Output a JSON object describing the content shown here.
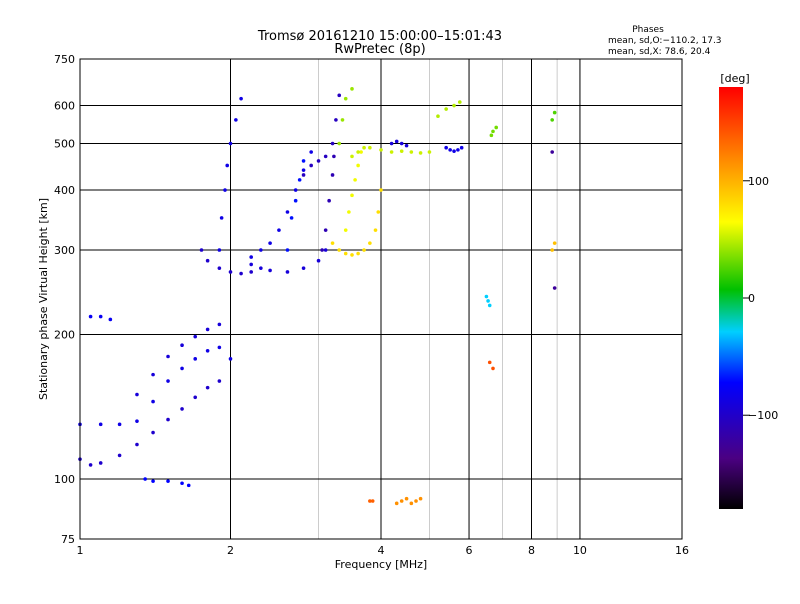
{
  "chart_data": {
    "type": "scatter",
    "title": "Tromsø 20161210 15:00:00–15:01:43",
    "subtitle": "RwPretec (8p)",
    "xlabel": "Frequency [MHz]",
    "ylabel": "Stationary phase Virtual Height [km]",
    "x_scale": "log",
    "y_scale": "log",
    "xlim": [
      1,
      16
    ],
    "ylim": [
      75,
      750
    ],
    "x_ticks": [
      1,
      2,
      4,
      6,
      8,
      10,
      16
    ],
    "x_tick_labels": [
      "1",
      "2",
      "4",
      "6",
      "8",
      "10",
      "16"
    ],
    "x_grid": [
      2,
      4,
      6,
      8,
      10
    ],
    "x_minor_grid": [
      3,
      5,
      7,
      9
    ],
    "y_ticks": [
      75,
      100,
      200,
      300,
      400,
      500,
      600,
      750
    ],
    "y_tick_labels": [
      "75",
      "100",
      "200",
      "300",
      "400",
      "500",
      "600",
      "750"
    ],
    "y_grid": [
      100,
      200,
      300,
      400,
      500,
      600
    ],
    "grid": true,
    "stats": {
      "heading": "Phases",
      "line1": "mean, sd,O:−110.2, 17.3",
      "line2": "mean, sd,X:  78.6, 20.4"
    },
    "colorbar": {
      "label": "[deg]",
      "ticks": [
        100,
        0,
        -100
      ],
      "tick_labels": [
        "100",
        "0",
        "−100"
      ],
      "range": [
        -180,
        180
      ],
      "placement": "right"
    },
    "series": [
      {
        "phase": -120,
        "trace": [
          [
            1.0,
            110
          ],
          [
            1.05,
            107
          ],
          [
            1.1,
            108
          ],
          [
            1.2,
            112
          ],
          [
            1.3,
            118
          ],
          [
            1.4,
            125
          ],
          [
            1.5,
            133
          ],
          [
            1.6,
            140
          ],
          [
            1.7,
            148
          ],
          [
            1.8,
            155
          ],
          [
            1.9,
            160
          ]
        ]
      },
      {
        "phase": -110,
        "trace": [
          [
            1.0,
            130
          ],
          [
            1.1,
            130
          ],
          [
            1.2,
            130
          ],
          [
            1.3,
            132
          ],
          [
            1.4,
            145
          ],
          [
            1.5,
            160
          ],
          [
            1.6,
            170
          ],
          [
            1.7,
            178
          ],
          [
            1.8,
            185
          ],
          [
            1.9,
            188
          ],
          [
            2.0,
            178
          ]
        ]
      },
      {
        "phase": -115,
        "trace": [
          [
            1.3,
            150
          ],
          [
            1.4,
            165
          ],
          [
            1.5,
            180
          ],
          [
            1.6,
            190
          ],
          [
            1.7,
            198
          ],
          [
            1.8,
            205
          ],
          [
            1.9,
            210
          ]
        ]
      },
      {
        "phase": -105,
        "trace": [
          [
            1.05,
            218
          ],
          [
            1.1,
            218
          ],
          [
            1.15,
            215
          ]
        ]
      },
      {
        "phase": -100,
        "trace": [
          [
            1.35,
            100
          ],
          [
            1.4,
            99
          ],
          [
            1.5,
            99
          ],
          [
            1.6,
            98
          ],
          [
            1.65,
            97
          ]
        ]
      },
      {
        "phase": -120,
        "trace": [
          [
            1.75,
            300
          ],
          [
            1.8,
            285
          ],
          [
            1.9,
            275
          ],
          [
            2.0,
            270
          ],
          [
            2.1,
            268
          ],
          [
            2.2,
            270
          ]
        ]
      },
      {
        "phase": -110,
        "trace": [
          [
            1.9,
            300
          ],
          [
            1.92,
            350
          ],
          [
            1.95,
            400
          ],
          [
            1.97,
            450
          ],
          [
            2.0,
            500
          ],
          [
            2.05,
            560
          ],
          [
            2.1,
            620
          ]
        ]
      },
      {
        "phase": -115,
        "trace": [
          [
            2.2,
            280
          ],
          [
            2.3,
            275
          ],
          [
            2.4,
            272
          ],
          [
            2.6,
            270
          ],
          [
            2.8,
            275
          ],
          [
            3.0,
            285
          ],
          [
            3.1,
            300
          ]
        ]
      },
      {
        "phase": -110,
        "trace": [
          [
            2.2,
            290
          ],
          [
            2.3,
            300
          ],
          [
            2.4,
            310
          ],
          [
            2.5,
            330
          ],
          [
            2.6,
            360
          ],
          [
            2.7,
            400
          ],
          [
            2.8,
            440
          ],
          [
            2.9,
            480
          ]
        ]
      },
      {
        "phase": -95,
        "trace": [
          [
            2.6,
            300
          ],
          [
            2.65,
            350
          ],
          [
            2.7,
            380
          ],
          [
            2.75,
            420
          ],
          [
            2.8,
            460
          ]
        ]
      },
      {
        "phase": -125,
        "trace": [
          [
            2.8,
            430
          ],
          [
            2.9,
            450
          ],
          [
            3.0,
            460
          ],
          [
            3.1,
            470
          ],
          [
            3.2,
            500
          ],
          [
            3.25,
            560
          ],
          [
            3.3,
            630
          ]
        ]
      },
      {
        "phase": -130,
        "trace": [
          [
            3.05,
            300
          ],
          [
            3.1,
            330
          ],
          [
            3.15,
            380
          ],
          [
            3.2,
            430
          ],
          [
            3.22,
            470
          ]
        ]
      },
      {
        "phase": 110,
        "trace": [
          [
            3.2,
            310
          ],
          [
            3.3,
            300
          ],
          [
            3.4,
            295
          ],
          [
            3.5,
            293
          ],
          [
            3.6,
            295
          ],
          [
            3.7,
            300
          ],
          [
            3.8,
            310
          ],
          [
            3.9,
            330
          ],
          [
            3.95,
            360
          ],
          [
            4.0,
            400
          ]
        ]
      },
      {
        "phase": 95,
        "trace": [
          [
            3.4,
            330
          ],
          [
            3.45,
            360
          ],
          [
            3.5,
            390
          ],
          [
            3.55,
            420
          ],
          [
            3.6,
            450
          ],
          [
            3.65,
            480
          ]
        ]
      },
      {
        "phase": 80,
        "trace": [
          [
            3.5,
            470
          ],
          [
            3.6,
            480
          ],
          [
            3.7,
            490
          ],
          [
            3.8,
            490
          ],
          [
            4.0,
            485
          ],
          [
            4.2,
            480
          ],
          [
            4.4,
            482
          ],
          [
            4.6,
            480
          ],
          [
            4.8,
            478
          ],
          [
            5.0,
            480
          ]
        ]
      },
      {
        "phase": 60,
        "trace": [
          [
            3.3,
            500
          ],
          [
            3.35,
            560
          ],
          [
            3.4,
            620
          ],
          [
            3.5,
            650
          ]
        ]
      },
      {
        "phase": -115,
        "trace": [
          [
            4.2,
            500
          ],
          [
            4.3,
            505
          ],
          [
            4.4,
            500
          ],
          [
            4.5,
            495
          ]
        ]
      },
      {
        "phase": -110,
        "trace": [
          [
            5.4,
            490
          ],
          [
            5.5,
            485
          ],
          [
            5.6,
            482
          ],
          [
            5.7,
            485
          ],
          [
            5.8,
            490
          ]
        ]
      },
      {
        "phase": 70,
        "trace": [
          [
            5.2,
            570
          ],
          [
            5.4,
            590
          ],
          [
            5.6,
            600
          ],
          [
            5.75,
            610
          ]
        ]
      },
      {
        "phase": 45,
        "trace": [
          [
            6.65,
            520
          ],
          [
            6.7,
            530
          ],
          [
            6.8,
            540
          ]
        ]
      },
      {
        "phase": 150,
        "trace": [
          [
            3.8,
            90
          ],
          [
            3.85,
            90
          ]
        ]
      },
      {
        "phase": 135,
        "trace": [
          [
            4.3,
            89
          ],
          [
            4.4,
            90
          ],
          [
            4.5,
            91
          ],
          [
            4.6,
            89
          ],
          [
            4.7,
            90
          ],
          [
            4.8,
            91
          ]
        ]
      },
      {
        "phase": -30,
        "trace": [
          [
            6.5,
            240
          ],
          [
            6.55,
            235
          ],
          [
            6.6,
            230
          ]
        ]
      },
      {
        "phase": 155,
        "trace": [
          [
            6.6,
            175
          ],
          [
            6.7,
            170
          ]
        ]
      },
      {
        "phase": 30,
        "trace": [
          [
            8.8,
            560
          ],
          [
            8.9,
            580
          ]
        ]
      },
      {
        "phase": -140,
        "trace": [
          [
            8.8,
            480
          ],
          [
            8.9,
            250
          ]
        ]
      },
      {
        "phase": 120,
        "trace": [
          [
            8.8,
            300
          ],
          [
            8.9,
            310
          ]
        ]
      }
    ]
  }
}
